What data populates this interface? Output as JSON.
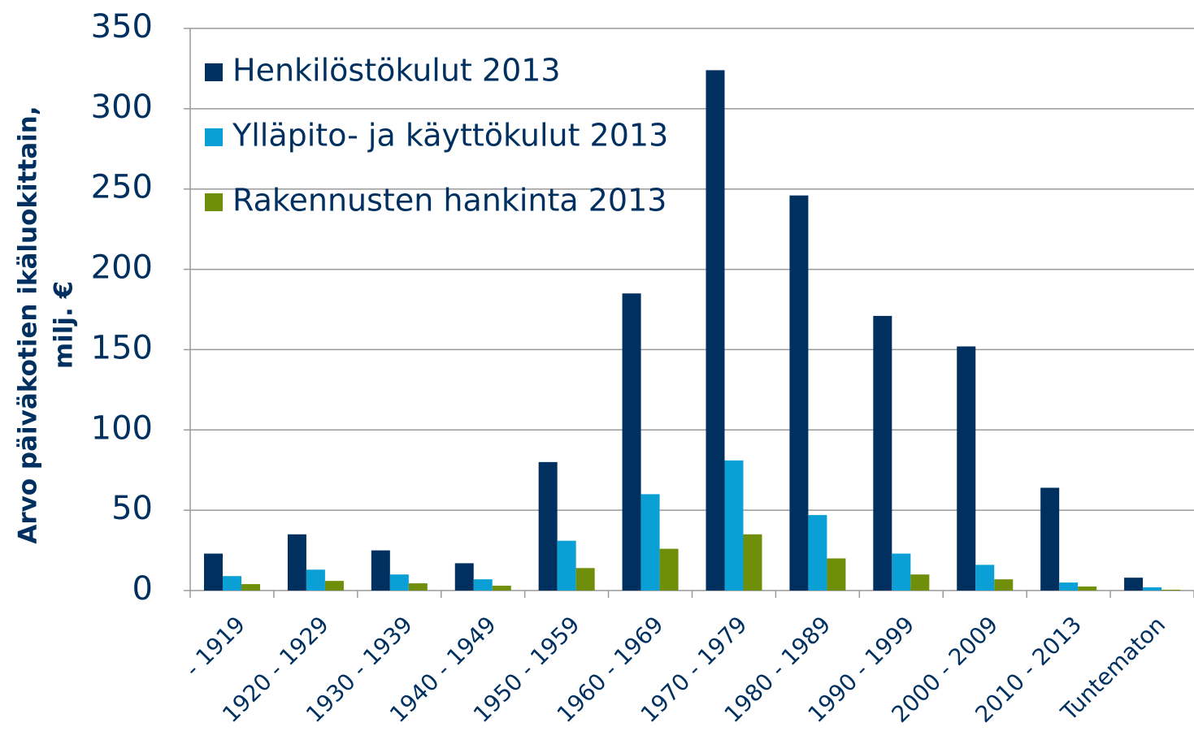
{
  "chart_data": {
    "type": "bar",
    "y_label": [
      "Arvo päiväkotien ikäluokittain,",
      "milj. €"
    ],
    "categories": [
      "- 1919",
      "1920 - 1929",
      "1930 - 1939",
      "1940 - 1949",
      "1950 - 1959",
      "1960 - 1969",
      "1970 - 1979",
      "1980 - 1989",
      "1990 - 1999",
      "2000 - 2009",
      "2010 - 2013",
      "Tuntematon"
    ],
    "series": [
      {
        "name": "Henkilöstökulut 2013",
        "color": "#00305f",
        "values": [
          23,
          35,
          25,
          17,
          80,
          185,
          324,
          246,
          171,
          152,
          64,
          8
        ]
      },
      {
        "name": "Ylläpito- ja käyttökulut 2013",
        "color": "#0aa0d6",
        "values": [
          9,
          13,
          10,
          7,
          31,
          60,
          81,
          47,
          23,
          16,
          5,
          2
        ]
      },
      {
        "name": "Rakennusten hankinta 2013",
        "color": "#6f8f0a",
        "values": [
          4,
          6,
          4.5,
          3,
          14,
          26,
          35,
          20,
          10,
          7,
          2.5,
          0.5
        ]
      }
    ],
    "ylim": [
      0,
      350
    ],
    "yticks": [
      0,
      50,
      100,
      150,
      200,
      250,
      300,
      350
    ],
    "grid": true,
    "legend": "upper left"
  }
}
